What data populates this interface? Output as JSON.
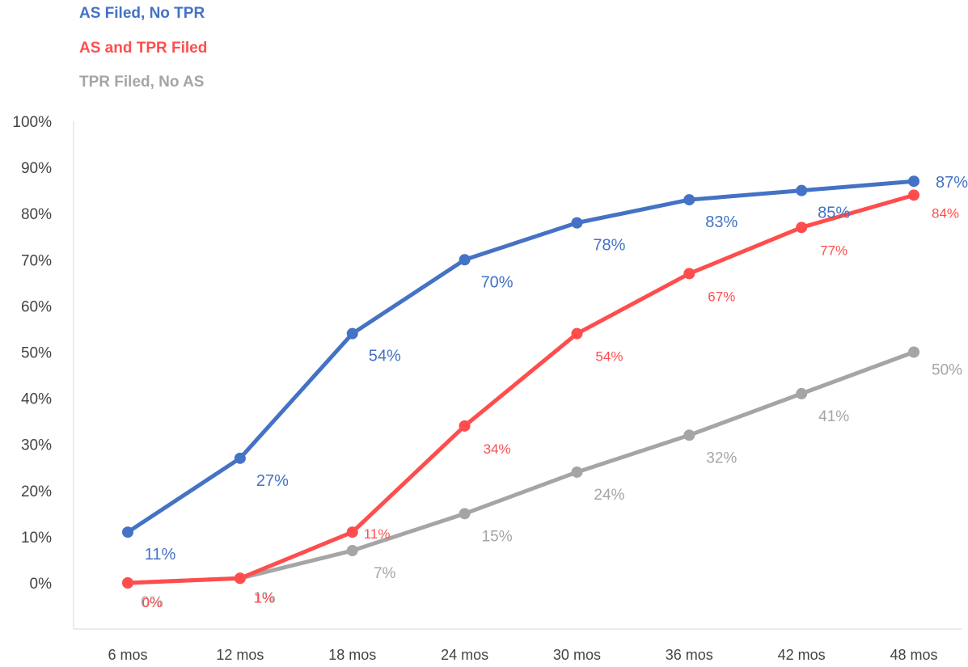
{
  "chart_data": {
    "type": "line",
    "categories": [
      "6 mos",
      "12 mos",
      "18 mos",
      "24 mos",
      "30 mos",
      "36 mos",
      "42 mos",
      "48 mos"
    ],
    "ylim": [
      0,
      100
    ],
    "yticks": [
      "0%",
      "10%",
      "20%",
      "30%",
      "40%",
      "50%",
      "60%",
      "70%",
      "80%",
      "90%",
      "100%"
    ],
    "grid": false,
    "legend_position": "top-left",
    "series": [
      {
        "name": "AS Filed, No TPR",
        "color": "#4472C4",
        "values": [
          11,
          27,
          54,
          70,
          78,
          83,
          85,
          87
        ],
        "labels": [
          "11%",
          "27%",
          "54%",
          "70%",
          "78%",
          "83%",
          "85%",
          "87%"
        ]
      },
      {
        "name": "AS and TPR Filed",
        "color": "#FF4D4D",
        "values": [
          0,
          1,
          11,
          34,
          54,
          67,
          77,
          84
        ],
        "labels": [
          "0%",
          "1%",
          "11%",
          "34%",
          "54%",
          "67%",
          "77%",
          "84%"
        ]
      },
      {
        "name": "TPR Filed, No AS",
        "color": "#A5A5A5",
        "values": [
          0,
          1,
          7,
          15,
          24,
          32,
          41,
          50
        ],
        "labels": [
          "0%",
          "1%",
          "7%",
          "15%",
          "24%",
          "32%",
          "41%",
          "50%"
        ]
      }
    ]
  }
}
